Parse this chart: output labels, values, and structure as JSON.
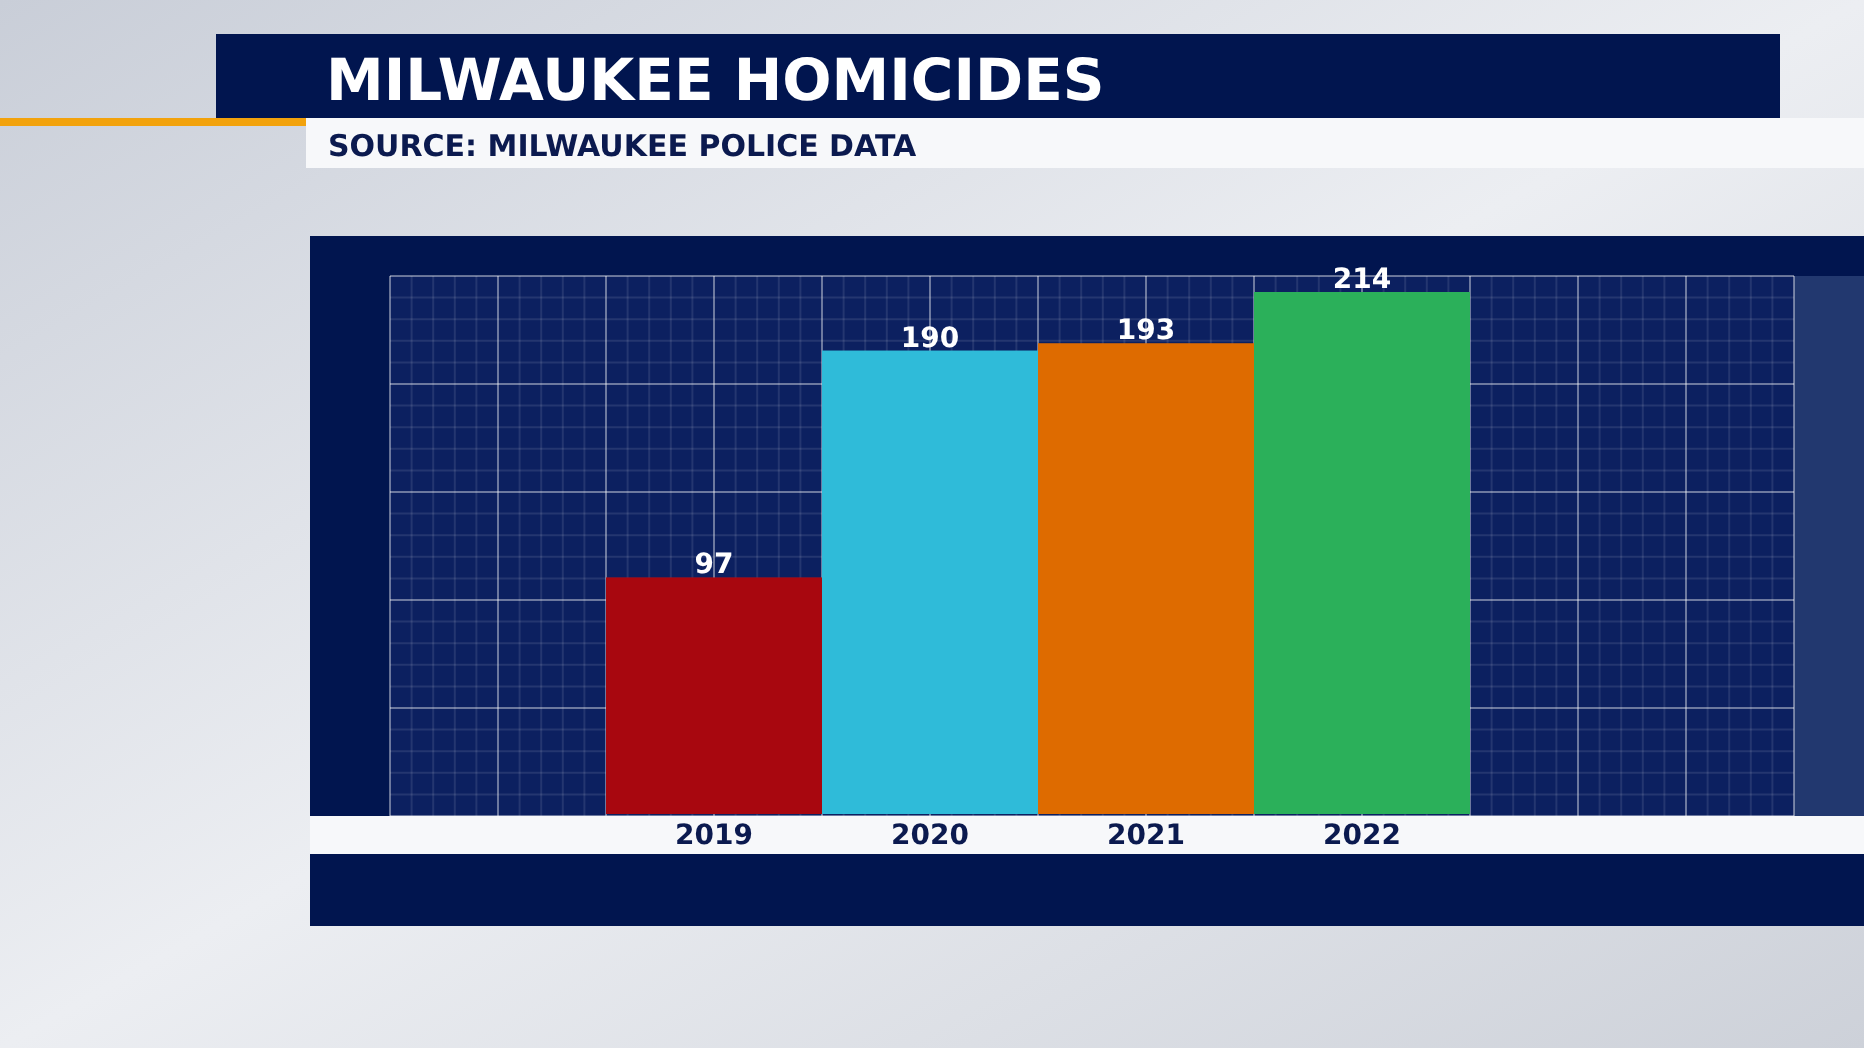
{
  "chart_data": {
    "type": "bar",
    "title": "MILWAUKEE HOMICIDES",
    "annotations": [
      "SOURCE: MILWAUKEE POLICE DATA"
    ],
    "categories": [
      "2019",
      "2020",
      "2021",
      "2022"
    ],
    "values": [
      97,
      190,
      193,
      214
    ],
    "colors": [
      "#a8070f",
      "#2fbbd9",
      "#de6b00",
      "#2bb05a"
    ],
    "data_labels": true,
    "grid": true
  }
}
